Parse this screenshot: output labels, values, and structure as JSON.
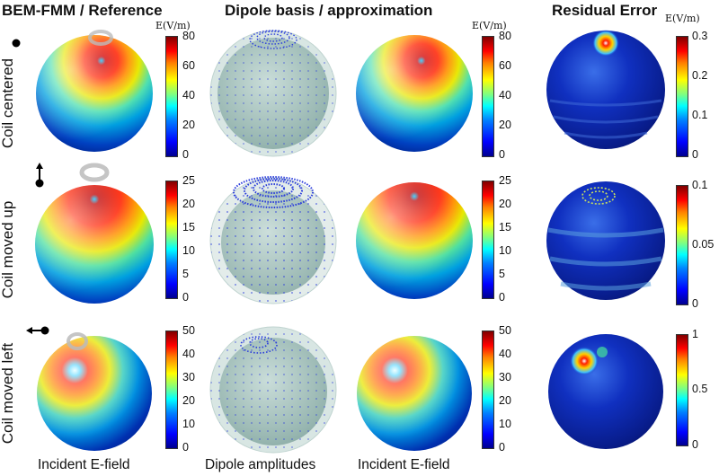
{
  "headers": {
    "reference": "BEM-FMM / Reference",
    "dipole": "Dipole basis / approximation",
    "residual": "Residual Error"
  },
  "row_labels": [
    "Coil centered",
    "Coil moved up",
    "Coil moved left"
  ],
  "footers": {
    "incident_ref": "Incident E-field",
    "dipole": "Dipole amplitudes",
    "incident_approx": "Incident E-field"
  },
  "unit_label": "E(V/m)",
  "colorbars": {
    "row1_field": [
      "80",
      "60",
      "40",
      "20",
      "0"
    ],
    "row1_resid": [
      "0.3",
      "0.2",
      "0.1",
      "0"
    ],
    "row2_field": [
      "25",
      "20",
      "15",
      "10",
      "5",
      "0"
    ],
    "row2_resid": [
      "0.1",
      "0.05",
      "0"
    ],
    "row3_field": [
      "50",
      "40",
      "30",
      "20",
      "10",
      "0"
    ],
    "row3_resid": [
      "1",
      "0.5",
      "0"
    ]
  },
  "colors": {
    "colormap": "jet",
    "dipole_dots": "#2233dd",
    "shell": "#b9d3cf"
  }
}
